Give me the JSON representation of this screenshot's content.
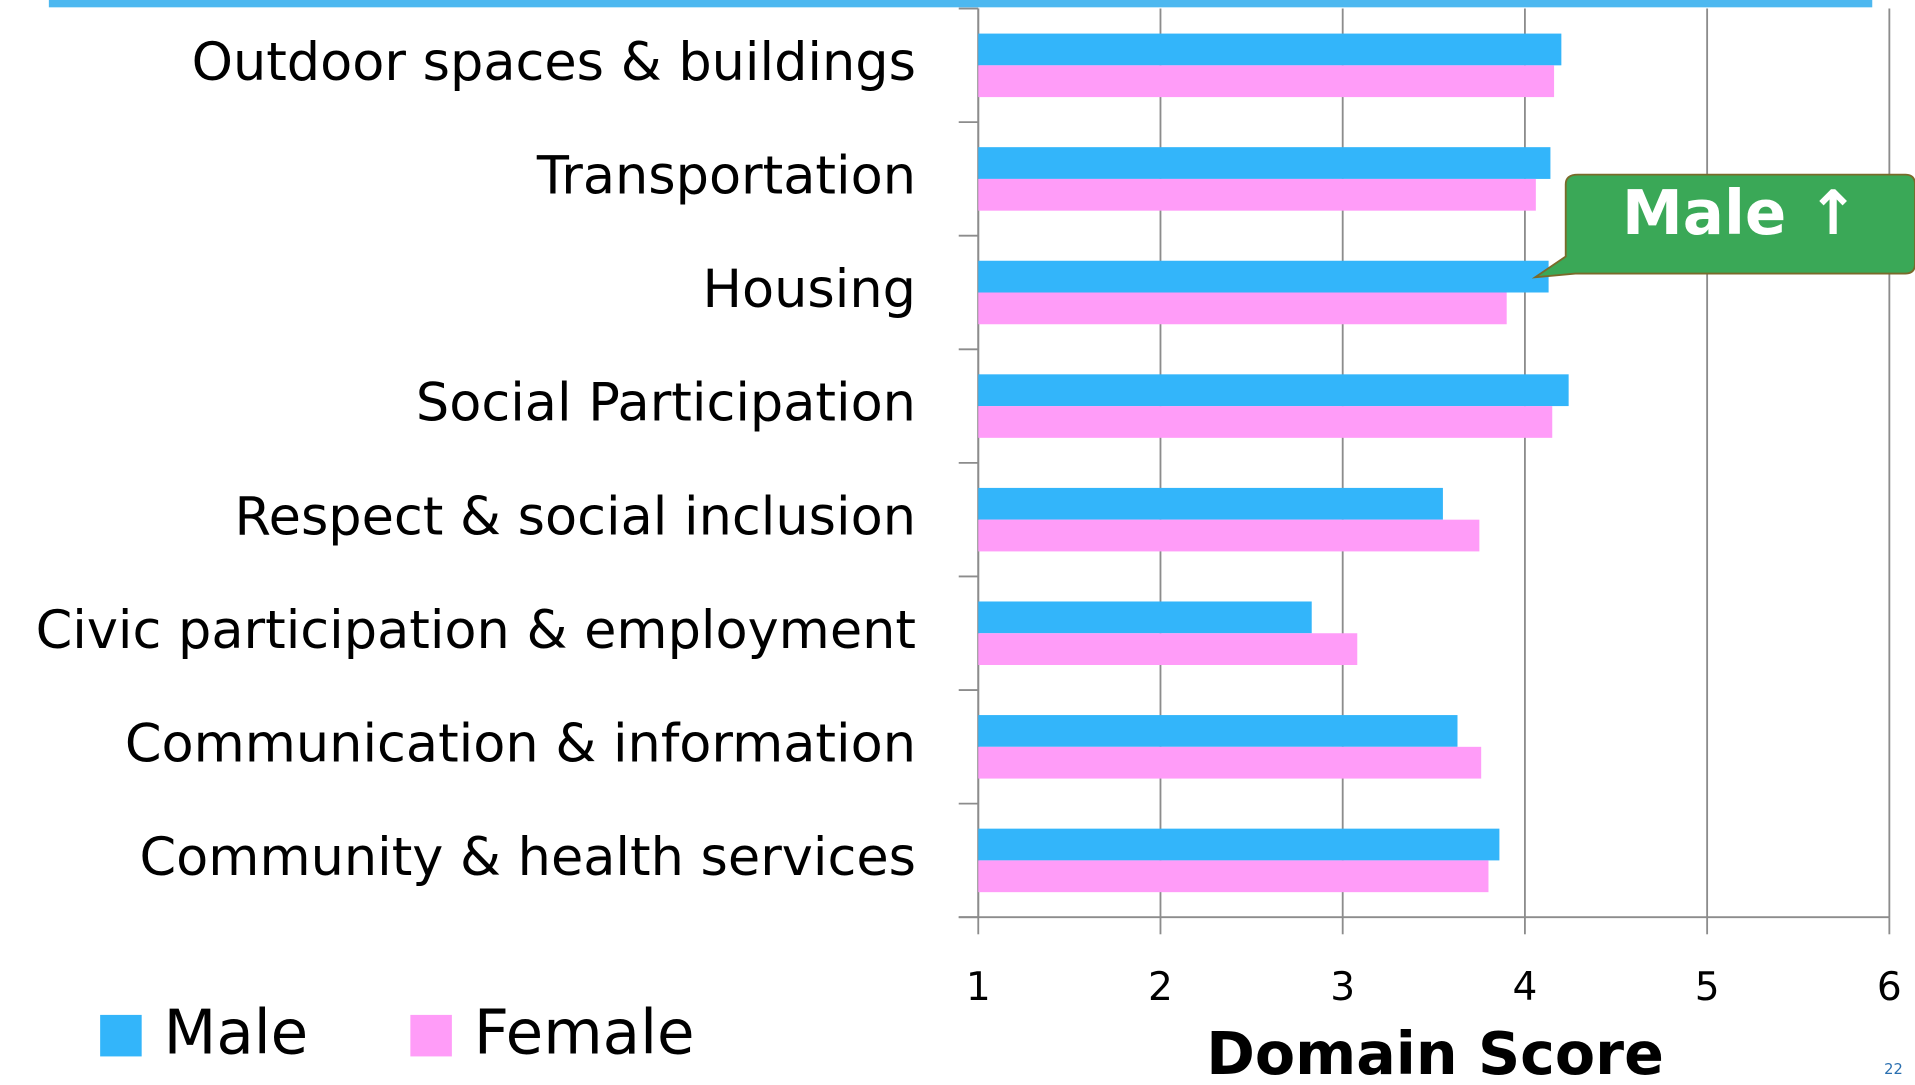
{
  "chart_data": {
    "type": "bar",
    "orientation": "horizontal",
    "categories": [
      "Outdoor spaces & buildings",
      "Transportation",
      "Housing",
      "Social Participation",
      "Respect & social inclusion",
      "Civic participation & employment",
      "Communication & information",
      "Community & health services"
    ],
    "series": [
      {
        "name": "Male",
        "color": "#33b5fa",
        "values": [
          4.2,
          4.14,
          4.13,
          4.24,
          3.55,
          2.83,
          3.63,
          3.86
        ]
      },
      {
        "name": "Female",
        "color": "#ff9cf8",
        "values": [
          4.16,
          4.06,
          3.9,
          4.15,
          3.75,
          3.08,
          3.76,
          3.8
        ]
      }
    ],
    "xlim": [
      1,
      6
    ],
    "xticks": [
      1,
      2,
      3,
      4,
      5,
      6
    ],
    "xlabel": "Domain Score",
    "grid": true,
    "legend": "bottom-left",
    "annotation": "Male ↑",
    "page_number": "22"
  }
}
